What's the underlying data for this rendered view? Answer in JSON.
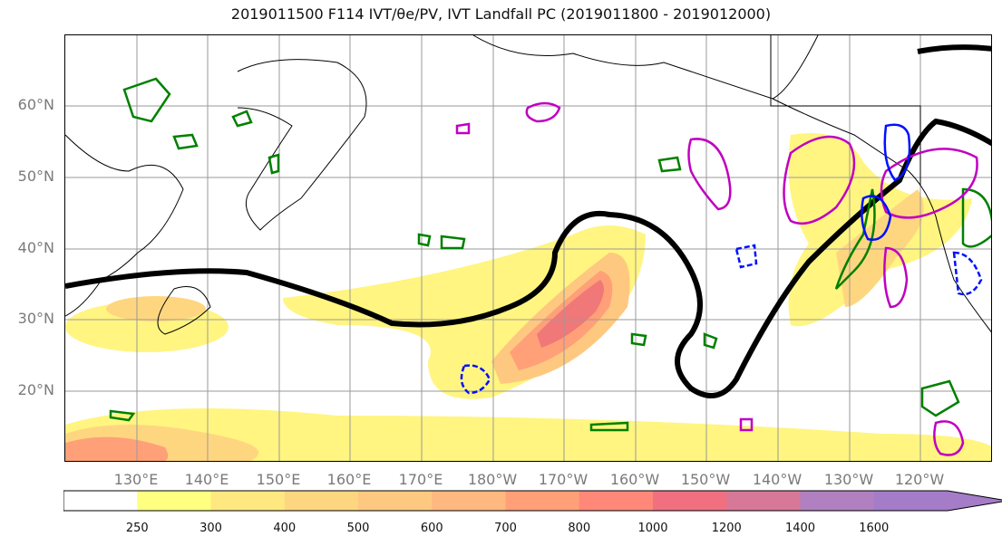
{
  "title": "2019011500 F114 IVT/θe/PV, IVT Landfall PC (2019011800 - 2019012000)",
  "map": {
    "lat_labels": [
      "60°N",
      "50°N",
      "40°N",
      "30°N",
      "20°N"
    ],
    "lon_labels": [
      "130°E",
      "140°E",
      "150°E",
      "160°E",
      "170°E",
      "180°W",
      "170°W",
      "160°W",
      "150°W",
      "140°W",
      "130°W",
      "120°W"
    ]
  },
  "colorbar": {
    "ticks": [
      "250",
      "300",
      "400",
      "500",
      "600",
      "700",
      "800",
      "1000",
      "1200",
      "1400",
      "1600"
    ],
    "colors": [
      "#ffffff",
      "#ffff80",
      "#ffe880",
      "#ffd680",
      "#ffc880",
      "#ffb880",
      "#ffa078",
      "#ff8878",
      "#f07080",
      "#d87898",
      "#b080c0",
      "#a47cc8"
    ]
  },
  "colors": {
    "ivt_fill": "#ffd680",
    "jet_line": "#000000",
    "theta_e": "#008000",
    "pv_pos": "#c000c0",
    "pv_neg": "#0010ff"
  }
}
